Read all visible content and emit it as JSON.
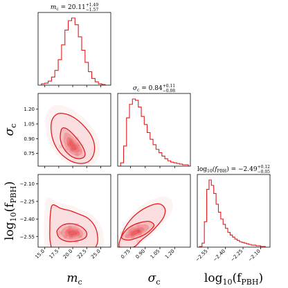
{
  "chart_data": {
    "type": "corner",
    "line_color": "#e31a1c",
    "fill_color": "#e31a1c",
    "parameters": [
      {
        "key": "mc",
        "symbol": "m",
        "subscript": "c",
        "prefix": "",
        "range": [
          13.8,
          26.8
        ],
        "ticks": [
          15.0,
          17.5,
          20.0,
          22.5,
          25.0
        ],
        "tick_labels": [
          "15.0",
          "17.5",
          "20.0",
          "22.5",
          "25.0"
        ],
        "title": {
          "text": "m_c = 20.11",
          "sup": "+1.49",
          "sub": "−1.57"
        }
      },
      {
        "key": "sigma",
        "symbol": "σ",
        "subscript": "c",
        "prefix": "",
        "range": [
          0.62,
          1.36
        ],
        "ticks": [
          0.75,
          0.9,
          1.05,
          1.2
        ],
        "tick_labels": [
          "0.75",
          "0.90",
          "1.05",
          "1.20"
        ],
        "title": {
          "text": "σ_c = 0.84",
          "sup": "+0.11",
          "sub": "−0.08"
        }
      },
      {
        "key": "logf",
        "symbol": "f",
        "subscript": "PBH",
        "prefix": "log10",
        "range": [
          -2.64,
          -2.02
        ],
        "ticks": [
          -2.55,
          -2.4,
          -2.25,
          -2.1
        ],
        "tick_labels": [
          "−2.55",
          "−2.40",
          "−2.25",
          "−2.10"
        ],
        "title": {
          "text": "log10(f_PBH) = −2.49",
          "sup": "+0.12",
          "sub": "−0.05"
        }
      }
    ],
    "histograms": [
      {
        "param": "mc",
        "bin_edges": [
          14.4,
          15.0,
          15.6,
          16.2,
          16.8,
          17.4,
          18.0,
          18.6,
          19.2,
          19.8,
          20.4,
          21.0,
          21.6,
          22.2,
          22.8,
          23.4,
          24.0,
          24.6,
          25.2,
          25.8
        ],
        "counts": [
          0.02,
          0.03,
          0.06,
          0.12,
          0.22,
          0.38,
          0.6,
          0.82,
          0.96,
          1.0,
          0.9,
          0.72,
          0.52,
          0.34,
          0.2,
          0.1,
          0.05,
          0.02,
          0.01
        ]
      },
      {
        "param": "sigma",
        "bin_edges": [
          0.65,
          0.68,
          0.71,
          0.74,
          0.77,
          0.8,
          0.83,
          0.86,
          0.89,
          0.92,
          0.95,
          0.98,
          1.01,
          1.04,
          1.07,
          1.1,
          1.13,
          1.16,
          1.19,
          1.22,
          1.25,
          1.28,
          1.31,
          1.34
        ],
        "counts": [
          0.05,
          0.3,
          0.72,
          0.92,
          1.0,
          0.98,
          0.88,
          0.74,
          0.62,
          0.5,
          0.4,
          0.32,
          0.25,
          0.2,
          0.15,
          0.11,
          0.08,
          0.06,
          0.05,
          0.04,
          0.03,
          0.02,
          0.02
        ]
      },
      {
        "param": "logf",
        "bin_edges": [
          -2.62,
          -2.6,
          -2.58,
          -2.56,
          -2.54,
          -2.52,
          -2.5,
          -2.48,
          -2.46,
          -2.44,
          -2.42,
          -2.4,
          -2.38,
          -2.36,
          -2.34,
          -2.32,
          -2.3,
          -2.28,
          -2.26,
          -2.24,
          -2.22,
          -2.2,
          -2.18,
          -2.16,
          -2.14,
          -2.12,
          -2.1,
          -2.08,
          -2.06
        ],
        "counts": [
          0.01,
          0.06,
          0.38,
          0.86,
          1.0,
          0.92,
          0.8,
          0.64,
          0.52,
          0.42,
          0.34,
          0.28,
          0.22,
          0.18,
          0.15,
          0.12,
          0.1,
          0.08,
          0.07,
          0.06,
          0.05,
          0.04,
          0.03,
          0.03,
          0.02,
          0.02,
          0.01,
          0.01
        ]
      }
    ],
    "contours_2d": [
      {
        "x": "mc",
        "y": "sigma",
        "center": [
          20.1,
          0.82
        ],
        "levels": [
          {
            "name": "inner",
            "points": [
              [
                17.9,
                0.98
              ],
              [
                18.3,
                1.01
              ],
              [
                19.2,
                0.99
              ],
              [
                20.3,
                0.93
              ],
              [
                21.3,
                0.86
              ],
              [
                22.0,
                0.79
              ],
              [
                22.2,
                0.73
              ],
              [
                21.6,
                0.7
              ],
              [
                20.6,
                0.7
              ],
              [
                19.5,
                0.73
              ],
              [
                18.4,
                0.8
              ],
              [
                17.8,
                0.89
              ]
            ]
          },
          {
            "name": "outer",
            "points": [
              [
                16.2,
                1.07
              ],
              [
                17.2,
                1.15
              ],
              [
                18.8,
                1.15
              ],
              [
                20.6,
                1.1
              ],
              [
                22.3,
                1.01
              ],
              [
                23.4,
                0.92
              ],
              [
                23.9,
                0.82
              ],
              [
                23.6,
                0.72
              ],
              [
                22.6,
                0.66
              ],
              [
                20.9,
                0.65
              ],
              [
                19.1,
                0.69
              ],
              [
                17.4,
                0.78
              ],
              [
                16.3,
                0.92
              ]
            ]
          }
        ]
      },
      {
        "x": "mc",
        "y": "logf",
        "center": [
          20.0,
          -2.52
        ],
        "levels": [
          {
            "name": "inner",
            "points": [
              [
                17.3,
                -2.49
              ],
              [
                18.3,
                -2.45
              ],
              [
                19.8,
                -2.44
              ],
              [
                21.3,
                -2.46
              ],
              [
                22.3,
                -2.5
              ],
              [
                22.5,
                -2.54
              ],
              [
                21.9,
                -2.57
              ],
              [
                20.4,
                -2.59
              ],
              [
                18.9,
                -2.59
              ],
              [
                17.6,
                -2.56
              ],
              [
                17.2,
                -2.52
              ]
            ]
          },
          {
            "name": "outer",
            "points": [
              [
                16.4,
                -2.28
              ],
              [
                17.9,
                -2.31
              ],
              [
                19.6,
                -2.33
              ],
              [
                21.2,
                -2.36
              ],
              [
                22.6,
                -2.39
              ],
              [
                23.8,
                -2.45
              ],
              [
                24.4,
                -2.53
              ],
              [
                24.3,
                -2.62
              ],
              [
                23.0,
                -2.66
              ],
              [
                17.0,
                -2.66
              ],
              [
                16.0,
                -2.6
              ],
              [
                15.9,
                -2.48
              ],
              [
                16.0,
                -2.36
              ]
            ]
          }
        ]
      },
      {
        "x": "sigma",
        "y": "logf",
        "center": [
          0.79,
          -2.52
        ],
        "levels": [
          {
            "name": "inner",
            "points": [
              [
                0.66,
                -2.56
              ],
              [
                0.7,
                -2.5
              ],
              [
                0.76,
                -2.46
              ],
              [
                0.85,
                -2.43
              ],
              [
                0.94,
                -2.42
              ],
              [
                0.99,
                -2.45
              ],
              [
                0.96,
                -2.49
              ],
              [
                0.9,
                -2.53
              ],
              [
                0.82,
                -2.56
              ],
              [
                0.73,
                -2.58
              ]
            ]
          },
          {
            "name": "outer",
            "points": [
              [
                0.64,
                -2.64
              ],
              [
                0.66,
                -2.54
              ],
              [
                0.72,
                -2.44
              ],
              [
                0.82,
                -2.35
              ],
              [
                0.94,
                -2.29
              ],
              [
                1.04,
                -2.27
              ],
              [
                1.1,
                -2.31
              ],
              [
                1.09,
                -2.38
              ],
              [
                1.03,
                -2.45
              ],
              [
                0.95,
                -2.52
              ],
              [
                0.86,
                -2.58
              ],
              [
                0.78,
                -2.64
              ]
            ]
          }
        ]
      }
    ],
    "grid": false,
    "legend": "none"
  }
}
